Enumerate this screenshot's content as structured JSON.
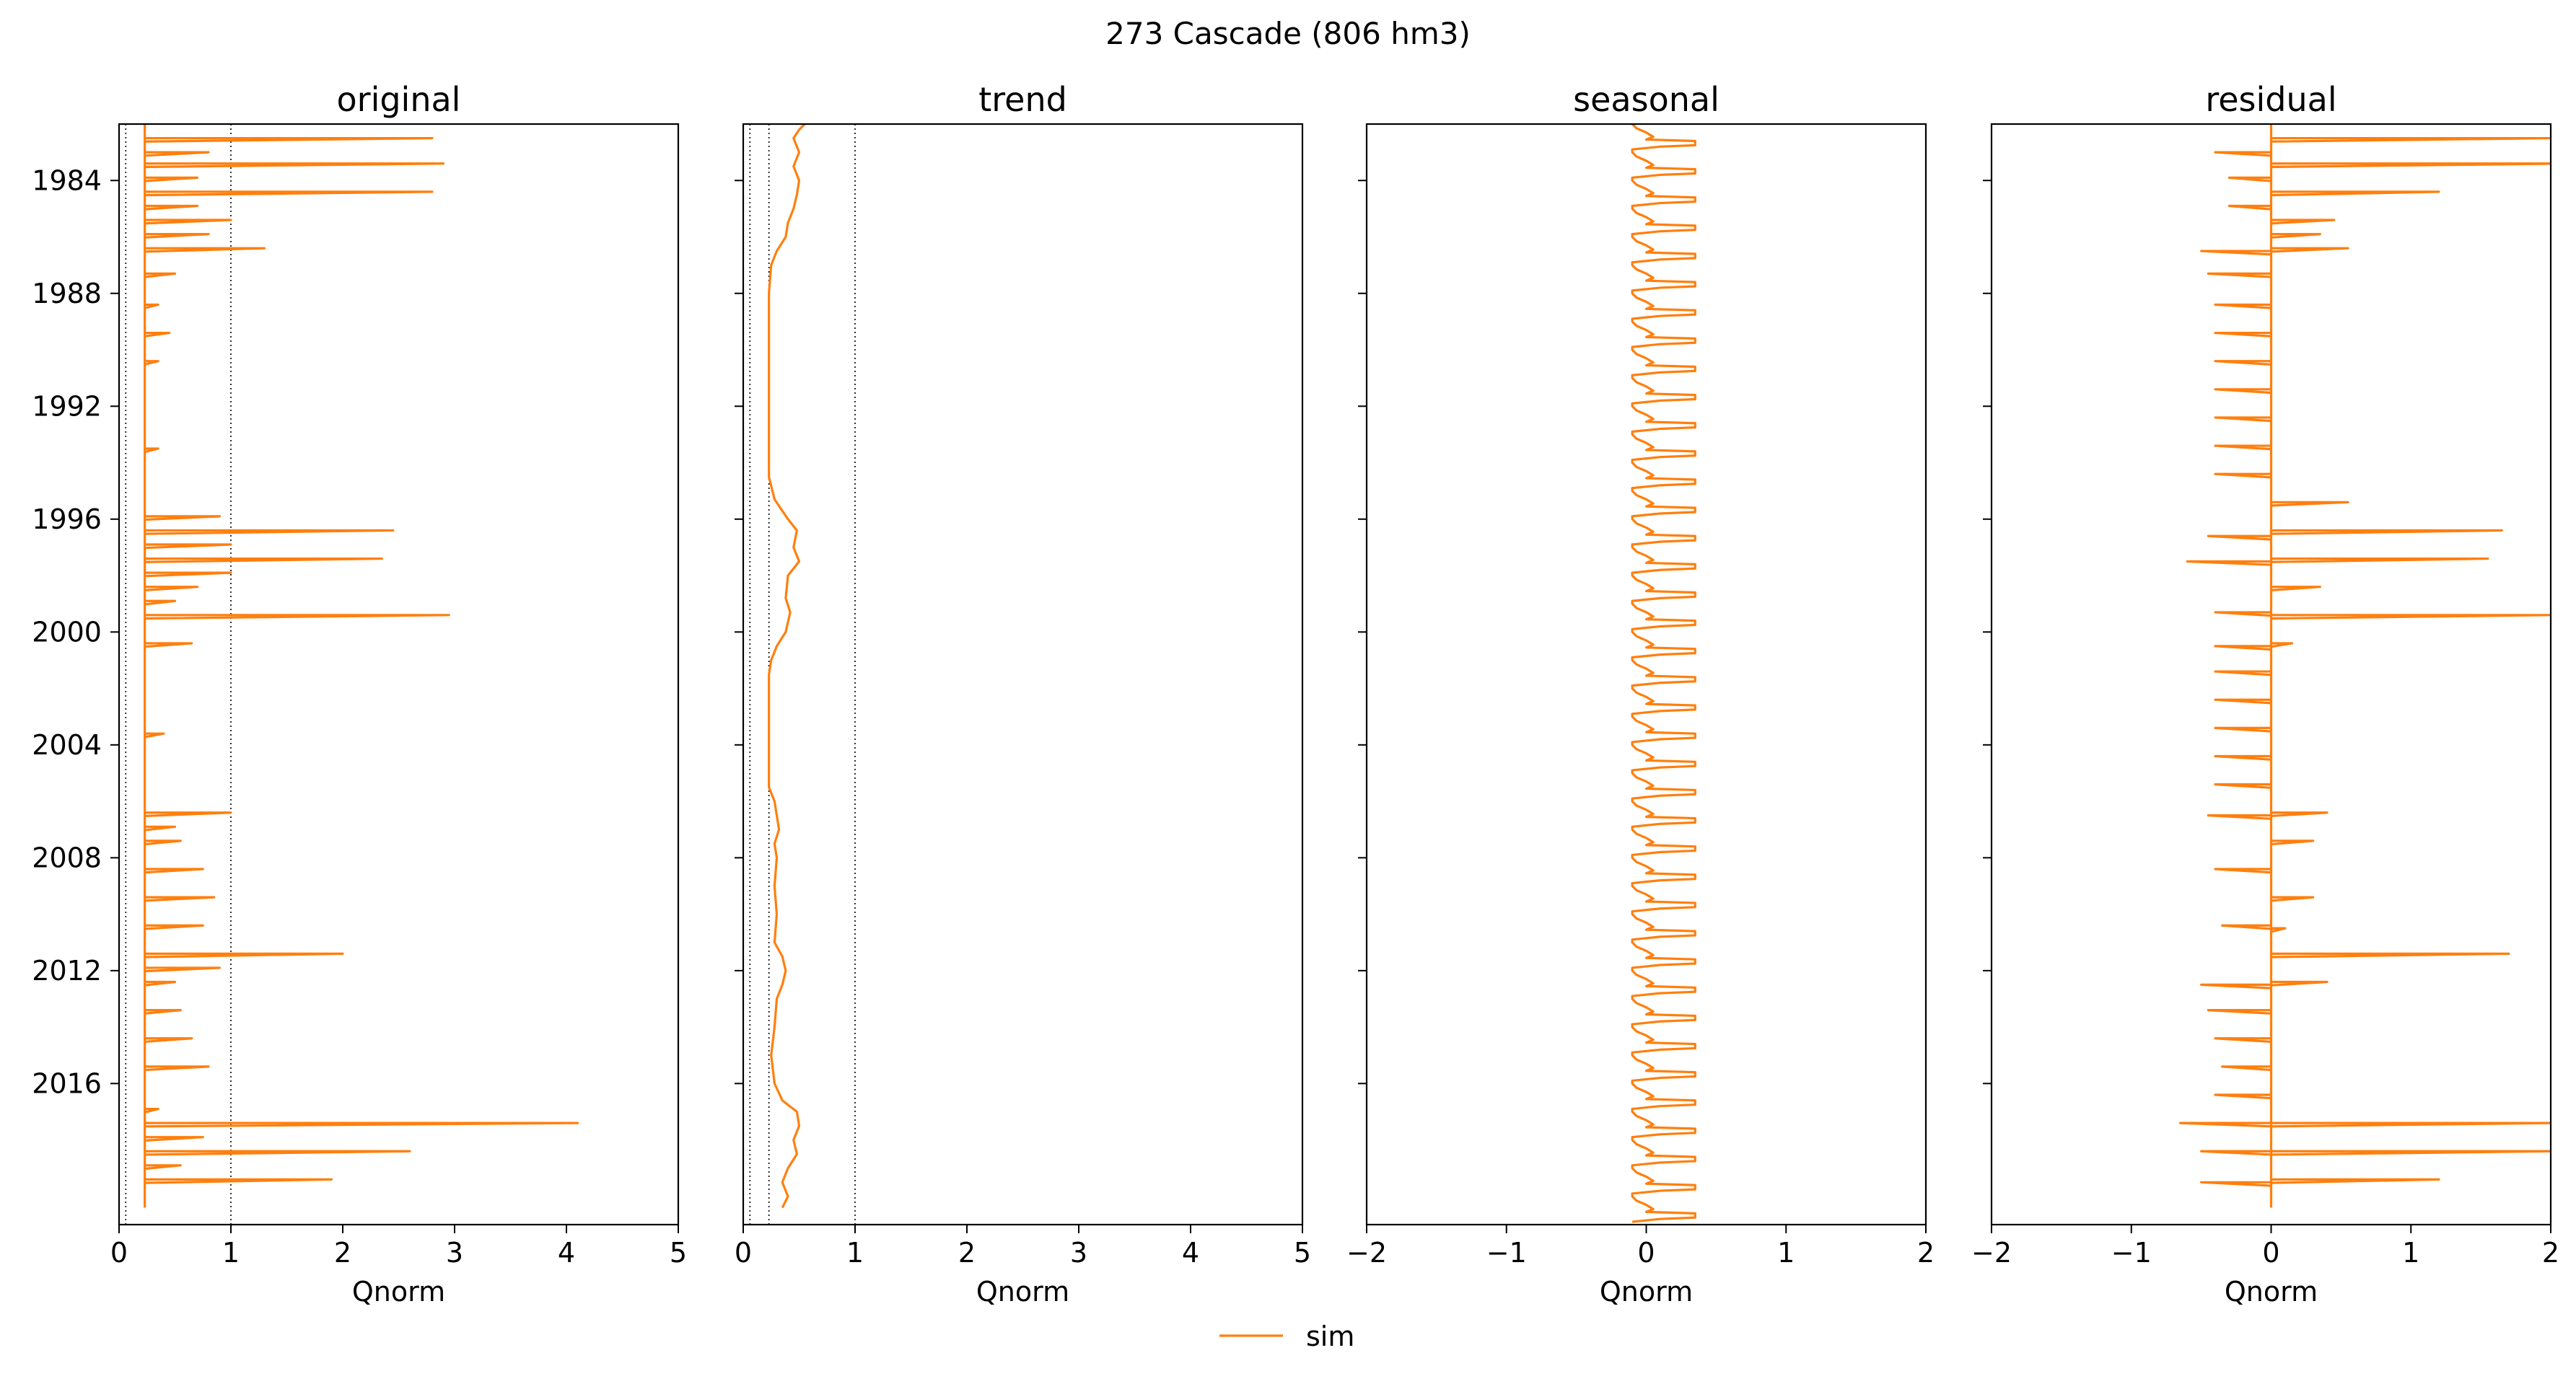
{
  "figure": {
    "suptitle": "273  Cascade (806 hm3)",
    "legend_label": "sim",
    "series_color": "#ff7f0e"
  },
  "chart_data": [
    {
      "type": "line",
      "title": "original",
      "xlabel": "Qnorm",
      "xlim": [
        0,
        5
      ],
      "xticks": [
        0,
        1,
        2,
        3,
        4,
        5
      ],
      "xtick_labels": [
        "0",
        "1",
        "2",
        "3",
        "4",
        "5"
      ],
      "ylim": [
        1982,
        2021
      ],
      "yticks": [
        1984,
        1988,
        1992,
        1996,
        2000,
        2004,
        2008,
        2012,
        2016
      ],
      "ytick_labels": [
        "1984",
        "1988",
        "1992",
        "1996",
        "2000",
        "2004",
        "2008",
        "2012",
        "2016"
      ],
      "show_ytick_labels": true,
      "ref_lines_x": [
        0.06,
        1.0
      ],
      "series_name": "sim",
      "baseline": 0.23,
      "spikes": [
        {
          "y": 1982.5,
          "v": 2.8
        },
        {
          "y": 1983.0,
          "v": 0.8
        },
        {
          "y": 1983.4,
          "v": 2.9
        },
        {
          "y": 1983.9,
          "v": 0.7
        },
        {
          "y": 1984.4,
          "v": 2.8
        },
        {
          "y": 1984.9,
          "v": 0.7
        },
        {
          "y": 1985.4,
          "v": 1.0
        },
        {
          "y": 1985.9,
          "v": 0.8
        },
        {
          "y": 1986.4,
          "v": 1.3
        },
        {
          "y": 1987.3,
          "v": 0.5
        },
        {
          "y": 1988.4,
          "v": 0.35
        },
        {
          "y": 1989.4,
          "v": 0.45
        },
        {
          "y": 1990.4,
          "v": 0.35
        },
        {
          "y": 1993.5,
          "v": 0.35
        },
        {
          "y": 1995.9,
          "v": 0.9
        },
        {
          "y": 1996.4,
          "v": 2.45
        },
        {
          "y": 1996.9,
          "v": 1.0
        },
        {
          "y": 1997.4,
          "v": 2.35
        },
        {
          "y": 1997.9,
          "v": 1.0
        },
        {
          "y": 1998.4,
          "v": 0.7
        },
        {
          "y": 1998.9,
          "v": 0.5
        },
        {
          "y": 1999.4,
          "v": 2.95
        },
        {
          "y": 2000.4,
          "v": 0.65
        },
        {
          "y": 2003.6,
          "v": 0.4
        },
        {
          "y": 2006.4,
          "v": 1.0
        },
        {
          "y": 2006.9,
          "v": 0.5
        },
        {
          "y": 2007.4,
          "v": 0.55
        },
        {
          "y": 2008.4,
          "v": 0.75
        },
        {
          "y": 2009.4,
          "v": 0.85
        },
        {
          "y": 2010.4,
          "v": 0.75
        },
        {
          "y": 2011.4,
          "v": 2.0
        },
        {
          "y": 2011.9,
          "v": 0.9
        },
        {
          "y": 2012.4,
          "v": 0.5
        },
        {
          "y": 2013.4,
          "v": 0.55
        },
        {
          "y": 2014.4,
          "v": 0.65
        },
        {
          "y": 2015.4,
          "v": 0.8
        },
        {
          "y": 2016.9,
          "v": 0.35
        },
        {
          "y": 2017.4,
          "v": 4.1
        },
        {
          "y": 2017.9,
          "v": 0.75
        },
        {
          "y": 2018.4,
          "v": 2.6
        },
        {
          "y": 2018.9,
          "v": 0.55
        },
        {
          "y": 2019.4,
          "v": 1.9
        }
      ]
    },
    {
      "type": "line",
      "title": "trend",
      "xlabel": "Qnorm",
      "xlim": [
        0,
        5
      ],
      "xticks": [
        0,
        1,
        2,
        3,
        4,
        5
      ],
      "xtick_labels": [
        "0",
        "1",
        "2",
        "3",
        "4",
        "5"
      ],
      "ylim": [
        1982,
        2021
      ],
      "yticks": [
        1984,
        1988,
        1992,
        1996,
        2000,
        2004,
        2008,
        2012,
        2016
      ],
      "ytick_labels": [
        "1984",
        "1988",
        "1992",
        "1996",
        "2000",
        "2004",
        "2008",
        "2012",
        "2016"
      ],
      "show_ytick_labels": false,
      "ref_lines_x": [
        0.06,
        0.23,
        1.0
      ],
      "series_name": "sim",
      "points": [
        [
          0.55,
          1982.0
        ],
        [
          0.5,
          1982.2
        ],
        [
          0.45,
          1982.5
        ],
        [
          0.5,
          1983.0
        ],
        [
          0.45,
          1983.5
        ],
        [
          0.5,
          1984.0
        ],
        [
          0.48,
          1984.5
        ],
        [
          0.45,
          1985.0
        ],
        [
          0.4,
          1985.5
        ],
        [
          0.38,
          1986.0
        ],
        [
          0.3,
          1986.5
        ],
        [
          0.25,
          1987.0
        ],
        [
          0.23,
          1988.0
        ],
        [
          0.23,
          1994.5
        ],
        [
          0.28,
          1995.3
        ],
        [
          0.4,
          1996.0
        ],
        [
          0.48,
          1996.4
        ],
        [
          0.45,
          1997.0
        ],
        [
          0.5,
          1997.5
        ],
        [
          0.4,
          1998.0
        ],
        [
          0.38,
          1998.8
        ],
        [
          0.42,
          1999.3
        ],
        [
          0.38,
          2000.0
        ],
        [
          0.3,
          2000.5
        ],
        [
          0.25,
          2001.0
        ],
        [
          0.23,
          2001.5
        ],
        [
          0.23,
          2005.5
        ],
        [
          0.28,
          2006.0
        ],
        [
          0.3,
          2006.5
        ],
        [
          0.32,
          2007.0
        ],
        [
          0.28,
          2007.5
        ],
        [
          0.3,
          2008.0
        ],
        [
          0.28,
          2009.0
        ],
        [
          0.3,
          2010.0
        ],
        [
          0.28,
          2011.0
        ],
        [
          0.35,
          2011.5
        ],
        [
          0.38,
          2012.0
        ],
        [
          0.35,
          2012.5
        ],
        [
          0.3,
          2013.0
        ],
        [
          0.28,
          2014.0
        ],
        [
          0.25,
          2015.0
        ],
        [
          0.28,
          2016.0
        ],
        [
          0.35,
          2016.6
        ],
        [
          0.48,
          2017.0
        ],
        [
          0.5,
          2017.5
        ],
        [
          0.45,
          2018.0
        ],
        [
          0.48,
          2018.5
        ],
        [
          0.4,
          2019.0
        ],
        [
          0.35,
          2019.5
        ],
        [
          0.4,
          2020.0
        ],
        [
          0.35,
          2020.4
        ]
      ]
    },
    {
      "type": "line",
      "title": "seasonal",
      "xlabel": "Qnorm",
      "xlim": [
        -2,
        2
      ],
      "xticks": [
        -2,
        -1,
        0,
        1,
        2
      ],
      "xtick_labels": [
        "−2",
        "−1",
        "0",
        "1",
        "2"
      ],
      "ylim": [
        1982,
        2021
      ],
      "yticks": [
        1984,
        1988,
        1992,
        1996,
        2000,
        2004,
        2008,
        2012,
        2016
      ],
      "ytick_labels": [
        "1984",
        "1988",
        "1992",
        "1996",
        "2000",
        "2004",
        "2008",
        "2012",
        "2016"
      ],
      "show_ytick_labels": false,
      "ref_lines_x": [],
      "series_name": "sim",
      "seasonal_min": -0.1,
      "seasonal_max": 0.35,
      "period_years": 1
    },
    {
      "type": "line",
      "title": "residual",
      "xlabel": "Qnorm",
      "xlim": [
        -2,
        2
      ],
      "xticks": [
        -2,
        -1,
        0,
        1,
        2
      ],
      "xtick_labels": [
        "−2",
        "−1",
        "0",
        "1",
        "2"
      ],
      "ylim": [
        1982,
        2021
      ],
      "yticks": [
        1984,
        1988,
        1992,
        1996,
        2000,
        2004,
        2008,
        2012,
        2016
      ],
      "ytick_labels": [
        "1984",
        "1988",
        "1992",
        "1996",
        "2000",
        "2004",
        "2008",
        "2012",
        "2016"
      ],
      "show_ytick_labels": false,
      "ref_lines_x": [],
      "series_name": "sim",
      "spikes": [
        {
          "y": 1982.5,
          "v": 2.0
        },
        {
          "y": 1983.0,
          "v": -0.4
        },
        {
          "y": 1983.4,
          "v": 2.1
        },
        {
          "y": 1983.9,
          "v": -0.3
        },
        {
          "y": 1984.4,
          "v": 1.2
        },
        {
          "y": 1984.9,
          "v": -0.3
        },
        {
          "y": 1985.4,
          "v": 0.45
        },
        {
          "y": 1985.9,
          "v": 0.35
        },
        {
          "y": 1986.4,
          "v": 0.55
        },
        {
          "y": 1986.5,
          "v": -0.5
        },
        {
          "y": 1987.3,
          "v": -0.45
        },
        {
          "y": 1988.4,
          "v": -0.4
        },
        {
          "y": 1989.4,
          "v": -0.4
        },
        {
          "y": 1990.4,
          "v": -0.4
        },
        {
          "y": 1991.4,
          "v": -0.4
        },
        {
          "y": 1992.4,
          "v": -0.4
        },
        {
          "y": 1993.4,
          "v": -0.4
        },
        {
          "y": 1994.4,
          "v": -0.4
        },
        {
          "y": 1995.4,
          "v": 0.55
        },
        {
          "y": 1996.4,
          "v": 1.65
        },
        {
          "y": 1996.6,
          "v": -0.45
        },
        {
          "y": 1997.4,
          "v": 1.55
        },
        {
          "y": 1997.5,
          "v": -0.6
        },
        {
          "y": 1998.4,
          "v": 0.35
        },
        {
          "y": 1999.4,
          "v": 2.0
        },
        {
          "y": 1999.3,
          "v": -0.4
        },
        {
          "y": 2000.4,
          "v": 0.15
        },
        {
          "y": 2000.5,
          "v": -0.4
        },
        {
          "y": 2001.4,
          "v": -0.4
        },
        {
          "y": 2002.4,
          "v": -0.4
        },
        {
          "y": 2003.4,
          "v": -0.4
        },
        {
          "y": 2004.4,
          "v": -0.4
        },
        {
          "y": 2005.4,
          "v": -0.4
        },
        {
          "y": 2006.4,
          "v": 0.4
        },
        {
          "y": 2006.5,
          "v": -0.45
        },
        {
          "y": 2007.4,
          "v": 0.3
        },
        {
          "y": 2008.4,
          "v": -0.4
        },
        {
          "y": 2009.4,
          "v": 0.3
        },
        {
          "y": 2010.4,
          "v": -0.35
        },
        {
          "y": 2010.5,
          "v": 0.1
        },
        {
          "y": 2011.4,
          "v": 1.7
        },
        {
          "y": 2012.4,
          "v": 0.4
        },
        {
          "y": 2012.5,
          "v": -0.5
        },
        {
          "y": 2013.4,
          "v": -0.45
        },
        {
          "y": 2014.4,
          "v": -0.4
        },
        {
          "y": 2015.4,
          "v": -0.35
        },
        {
          "y": 2016.4,
          "v": -0.4
        },
        {
          "y": 2017.4,
          "v": 2.0
        },
        {
          "y": 2017.4,
          "v": -0.65
        },
        {
          "y": 2018.4,
          "v": 2.0
        },
        {
          "y": 2018.4,
          "v": -0.5
        },
        {
          "y": 2019.4,
          "v": 1.2
        },
        {
          "y": 2019.5,
          "v": -0.5
        }
      ]
    }
  ]
}
